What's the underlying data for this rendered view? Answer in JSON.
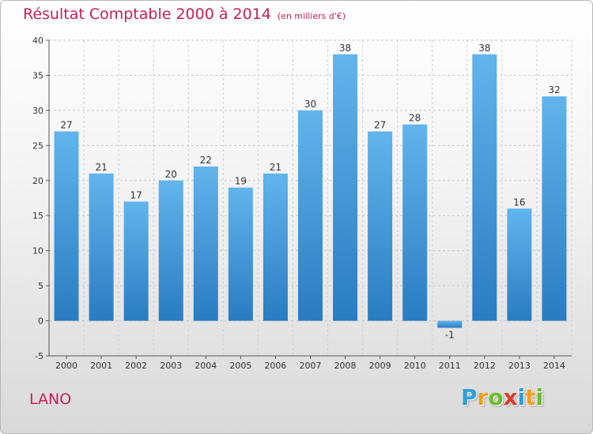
{
  "header": {
    "title": "Résultat Comptable 2000 à 2014",
    "subtitle": "(en milliers d'€)"
  },
  "footer": {
    "commune": "LANO",
    "logo_letters": [
      "P",
      "r",
      "o",
      "x",
      "i",
      "t",
      "i"
    ],
    "logo_colors": [
      "#2e9fd8",
      "#f0a020",
      "#6cbf2c",
      "#d83a2a",
      "#2e9fd8",
      "#f0a020",
      "#6cbf2c"
    ]
  },
  "colors": {
    "bar_light": "#62b4ec",
    "bar_dark": "#2a7cc2",
    "title": "#c41e5a",
    "axis": "#555555"
  },
  "chart_data": {
    "type": "bar",
    "categories": [
      "2000",
      "2001",
      "2002",
      "2003",
      "2004",
      "2005",
      "2006",
      "2007",
      "2008",
      "2009",
      "2010",
      "2011",
      "2012",
      "2013",
      "2014"
    ],
    "values": [
      27,
      21,
      17,
      20,
      22,
      19,
      21,
      30,
      38,
      27,
      28,
      -1,
      38,
      16,
      32
    ],
    "value_labels": [
      "27",
      "21",
      "17",
      "20",
      "22",
      "19",
      "21",
      "30",
      "38",
      "27",
      "28",
      "-1",
      "38",
      "16",
      "32"
    ],
    "ylim": [
      -5,
      40
    ],
    "yticks": [
      -5,
      0,
      5,
      10,
      15,
      20,
      25,
      30,
      35,
      40
    ],
    "grid": true
  }
}
